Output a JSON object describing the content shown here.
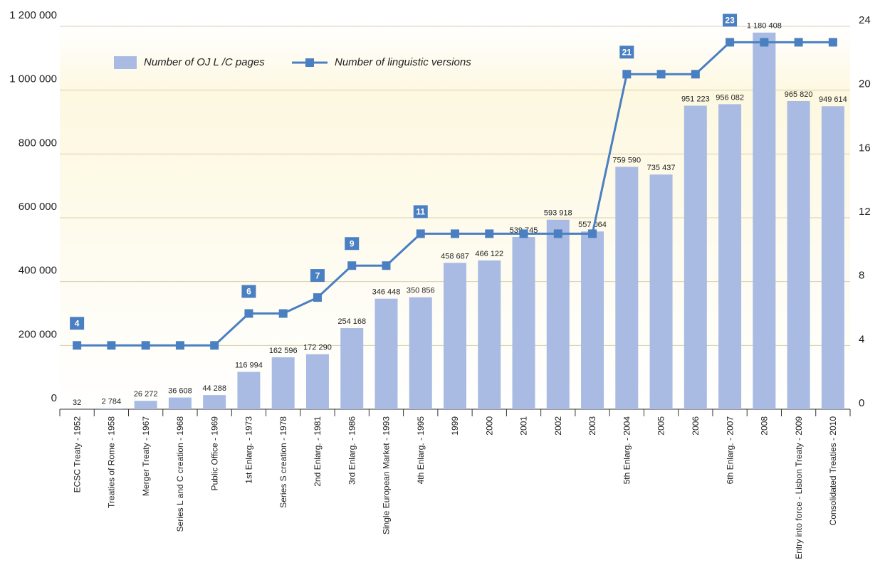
{
  "chart_data": {
    "type": "bar",
    "categories": [
      "ECSC Treaty - 1952",
      "Treaties of Rome - 1958",
      "Merger Treaty - 1967",
      "Series L and C creation - 1968",
      "Public Office - 1969",
      "1st Enlarg. - 1973",
      "Series S creation - 1978",
      "2nd Enlarg. - 1981",
      "3rd Enlarg. - 1986",
      "Single European Market - 1993",
      "4th Enlarg. - 1995",
      "1999",
      "2000",
      "2001",
      "2002",
      "2003",
      "5th Enlarg. - 2004",
      "2005",
      "2006",
      "6th Enlarg. - 2007",
      "2008",
      "Entry into force - Lisbon Treaty - 2009",
      "Consolidated Treaties - 2010"
    ],
    "series": [
      {
        "name": "Number of OJ L /C pages",
        "type": "bar",
        "color": "#a9bbe3",
        "values": [
          32,
          2784,
          26272,
          36608,
          44288,
          116994,
          162596,
          172290,
          254168,
          346448,
          350856,
          458687,
          466122,
          539745,
          593918,
          557064,
          759590,
          735437,
          951223,
          956082,
          1180408,
          965820,
          949614
        ],
        "value_labels": [
          "32",
          "2 784",
          "26 272",
          "36 608",
          "44 288",
          "116 994",
          "162 596",
          "172 290",
          "254 168",
          "346 448",
          "350 856",
          "458 687",
          "466 122",
          "539 745",
          "593 918",
          "557 064",
          "759 590",
          "735 437",
          "951 223",
          "956 082",
          "1 180 408",
          "965 820",
          "949 614"
        ]
      },
      {
        "name": "Number of linguistic versions",
        "type": "line",
        "axis": "y2",
        "color": "#4a7fc1",
        "values": [
          4,
          4,
          4,
          4,
          4,
          6,
          6,
          7,
          9,
          9,
          11,
          11,
          11,
          11,
          11,
          11,
          21,
          21,
          21,
          23,
          23,
          23,
          23
        ],
        "value_labels": [
          "4",
          null,
          null,
          null,
          null,
          "6",
          null,
          "7",
          "9",
          null,
          "11",
          null,
          null,
          null,
          null,
          null,
          "21",
          null,
          null,
          "23",
          null,
          null,
          null
        ]
      }
    ],
    "ylim": [
      0,
      1200000
    ],
    "yticks": [
      0,
      {
        "value": 200000,
        "label": "200 000"
      },
      {
        "value": 400000,
        "label": "400 000"
      },
      {
        "value": 600000,
        "label": "600 000"
      },
      {
        "value": 800000,
        "label": "800 000"
      },
      {
        "value": 1000000,
        "label": "1 000 000"
      },
      {
        "value": 1200000,
        "label": "1 200 000"
      }
    ],
    "y2lim": [
      0,
      24
    ],
    "y2ticks": [
      0,
      4,
      8,
      12,
      16,
      20,
      24
    ],
    "grid": true,
    "legend": "top-left"
  }
}
